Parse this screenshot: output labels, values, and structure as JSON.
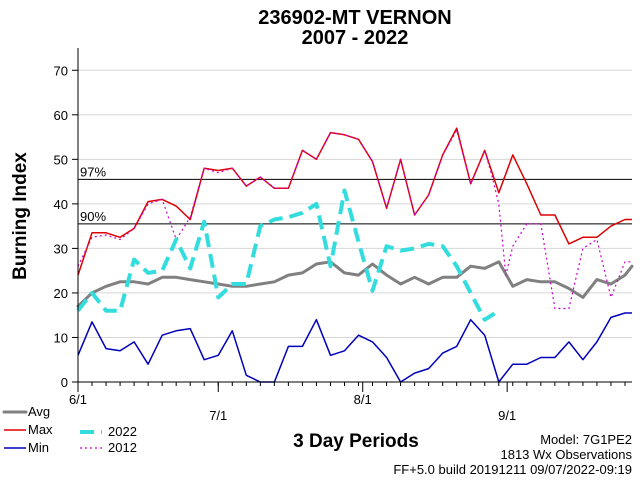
{
  "chart_data": {
    "type": "line",
    "title": "236902-MT VERNON",
    "subtitle": "2007 - 2022",
    "xlabel": "3 Day Periods",
    "ylabel": "Burning Index",
    "ylim": [
      0,
      75
    ],
    "xlim": [
      0,
      39.5
    ],
    "yticks": [
      0,
      10,
      20,
      30,
      40,
      50,
      60,
      70
    ],
    "xticks": [
      {
        "x": 0,
        "label": "6/1"
      },
      {
        "x": 10,
        "label": "7/1"
      },
      {
        "x": 20.3,
        "label": "8/1"
      },
      {
        "x": 30.6,
        "label": "9/1"
      }
    ],
    "reference_lines": [
      {
        "label": "97%",
        "value": 45.5
      },
      {
        "label": "90%",
        "value": 35.5
      }
    ],
    "series": [
      {
        "name": "Avg",
        "color": "#808080",
        "style": "solid-thick",
        "x": [
          0,
          1,
          2,
          3,
          4,
          5,
          6,
          7,
          8,
          9,
          10,
          11,
          12,
          13,
          14,
          15,
          16,
          17,
          18,
          19,
          20,
          21,
          22,
          23,
          24,
          25,
          26,
          27,
          28,
          29,
          30,
          31,
          32,
          33,
          34,
          35,
          36,
          37,
          38,
          39,
          39.5
        ],
        "values": [
          17,
          20,
          21.5,
          22.5,
          22.5,
          22,
          23.5,
          23.5,
          23,
          22.5,
          22,
          21.5,
          21.5,
          22,
          22.5,
          24,
          24.5,
          26.5,
          27,
          24.5,
          24,
          26.5,
          24,
          22,
          23.5,
          22,
          23.5,
          23.5,
          26,
          25.5,
          27,
          21.5,
          23,
          22.5,
          22.5,
          21,
          19,
          23,
          22,
          24,
          26
        ]
      },
      {
        "name": "Max",
        "color": "#dd0000",
        "style": "solid",
        "x": [
          0,
          1,
          2,
          3,
          4,
          5,
          6,
          7,
          8,
          9,
          10,
          11,
          12,
          13,
          14,
          15,
          16,
          17,
          18,
          19,
          20,
          21,
          22,
          23,
          24,
          25,
          26,
          27,
          28,
          29,
          30,
          31,
          32,
          33,
          34,
          35,
          36,
          37,
          38,
          39,
          39.5
        ],
        "values": [
          24,
          33.5,
          33.5,
          32.5,
          34.5,
          40.5,
          41,
          39.5,
          36.5,
          48,
          47.5,
          48,
          44,
          46,
          43.5,
          43.5,
          52,
          50,
          56,
          55.5,
          54.5,
          49.5,
          39,
          50,
          37.5,
          42,
          51,
          57,
          44.5,
          52,
          42.5,
          51,
          44.5,
          37.5,
          37.5,
          31,
          32.5,
          32.5,
          35,
          36.5,
          36.5
        ]
      },
      {
        "name": "Min",
        "color": "#0000bb",
        "style": "solid",
        "x": [
          0,
          1,
          2,
          3,
          4,
          5,
          6,
          7,
          8,
          9,
          10,
          11,
          12,
          13,
          14,
          15,
          16,
          17,
          18,
          19,
          20,
          21,
          22,
          23,
          24,
          25,
          26,
          27,
          28,
          29,
          30,
          31,
          32,
          33,
          34,
          35,
          36,
          37,
          38,
          39,
          39.5
        ],
        "values": [
          6,
          13.5,
          7.5,
          7,
          9,
          4,
          10.5,
          11.5,
          12,
          5,
          6,
          11.5,
          1.5,
          0,
          0,
          8,
          8,
          14,
          6,
          7,
          10.5,
          9,
          5.5,
          0,
          2,
          3,
          6.5,
          8,
          14,
          10.5,
          0,
          4,
          4,
          5.5,
          5.5,
          9,
          5,
          9,
          14.5,
          15.5,
          15.5
        ]
      },
      {
        "name": "2022",
        "color": "#33dddd",
        "style": "dashed-thick",
        "x": [
          0,
          1,
          2,
          3,
          4,
          5,
          6,
          7,
          8,
          9,
          10,
          11,
          12,
          13,
          14,
          15,
          16,
          17,
          18,
          19,
          20,
          21,
          22,
          23,
          24,
          25,
          26,
          27,
          28,
          29,
          30
        ],
        "values": [
          16,
          20,
          16,
          16,
          27.5,
          24.5,
          25,
          32,
          25.5,
          36,
          19,
          22,
          22,
          35,
          36.5,
          37,
          38,
          40,
          26,
          43,
          31.5,
          20.5,
          30.5,
          29.5,
          30,
          31,
          30.5,
          26,
          20,
          14,
          16
        ]
      },
      {
        "name": "2012",
        "color": "#cc00cc",
        "style": "dotted",
        "x": [
          0,
          1,
          2,
          3,
          4,
          5,
          6,
          7,
          8,
          9,
          10,
          11,
          12,
          13,
          14,
          15,
          16,
          17,
          18,
          19,
          20,
          21,
          22,
          23,
          24,
          25,
          26,
          27,
          28,
          29,
          29.5,
          30,
          30.5,
          31,
          32,
          33,
          34,
          35,
          36,
          37,
          38,
          39,
          39.5
        ],
        "values": [
          26,
          32.5,
          33,
          32,
          34.5,
          40,
          41,
          32,
          37,
          48,
          47,
          48,
          44,
          46,
          43.5,
          43.5,
          52,
          50,
          56,
          55.5,
          54.5,
          49.5,
          39,
          50,
          37.5,
          42,
          51,
          56.5,
          44.5,
          52,
          46.5,
          40,
          24,
          30.5,
          35.5,
          35.5,
          16.5,
          16.5,
          30,
          32,
          19,
          27,
          27
        ]
      }
    ],
    "legend": [
      {
        "label": "Avg",
        "series": "Avg"
      },
      {
        "label": "Max",
        "series": "Max"
      },
      {
        "label": "Min",
        "series": "Min"
      },
      {
        "label": "2022",
        "series": "2022"
      },
      {
        "label": "2012",
        "series": "2012"
      }
    ]
  },
  "footer": {
    "model": "Model:  7G1PE2",
    "observations": "1813 Wx Observations",
    "build": "FF+5.0 build 20191211 09/07/2022-09:19"
  }
}
